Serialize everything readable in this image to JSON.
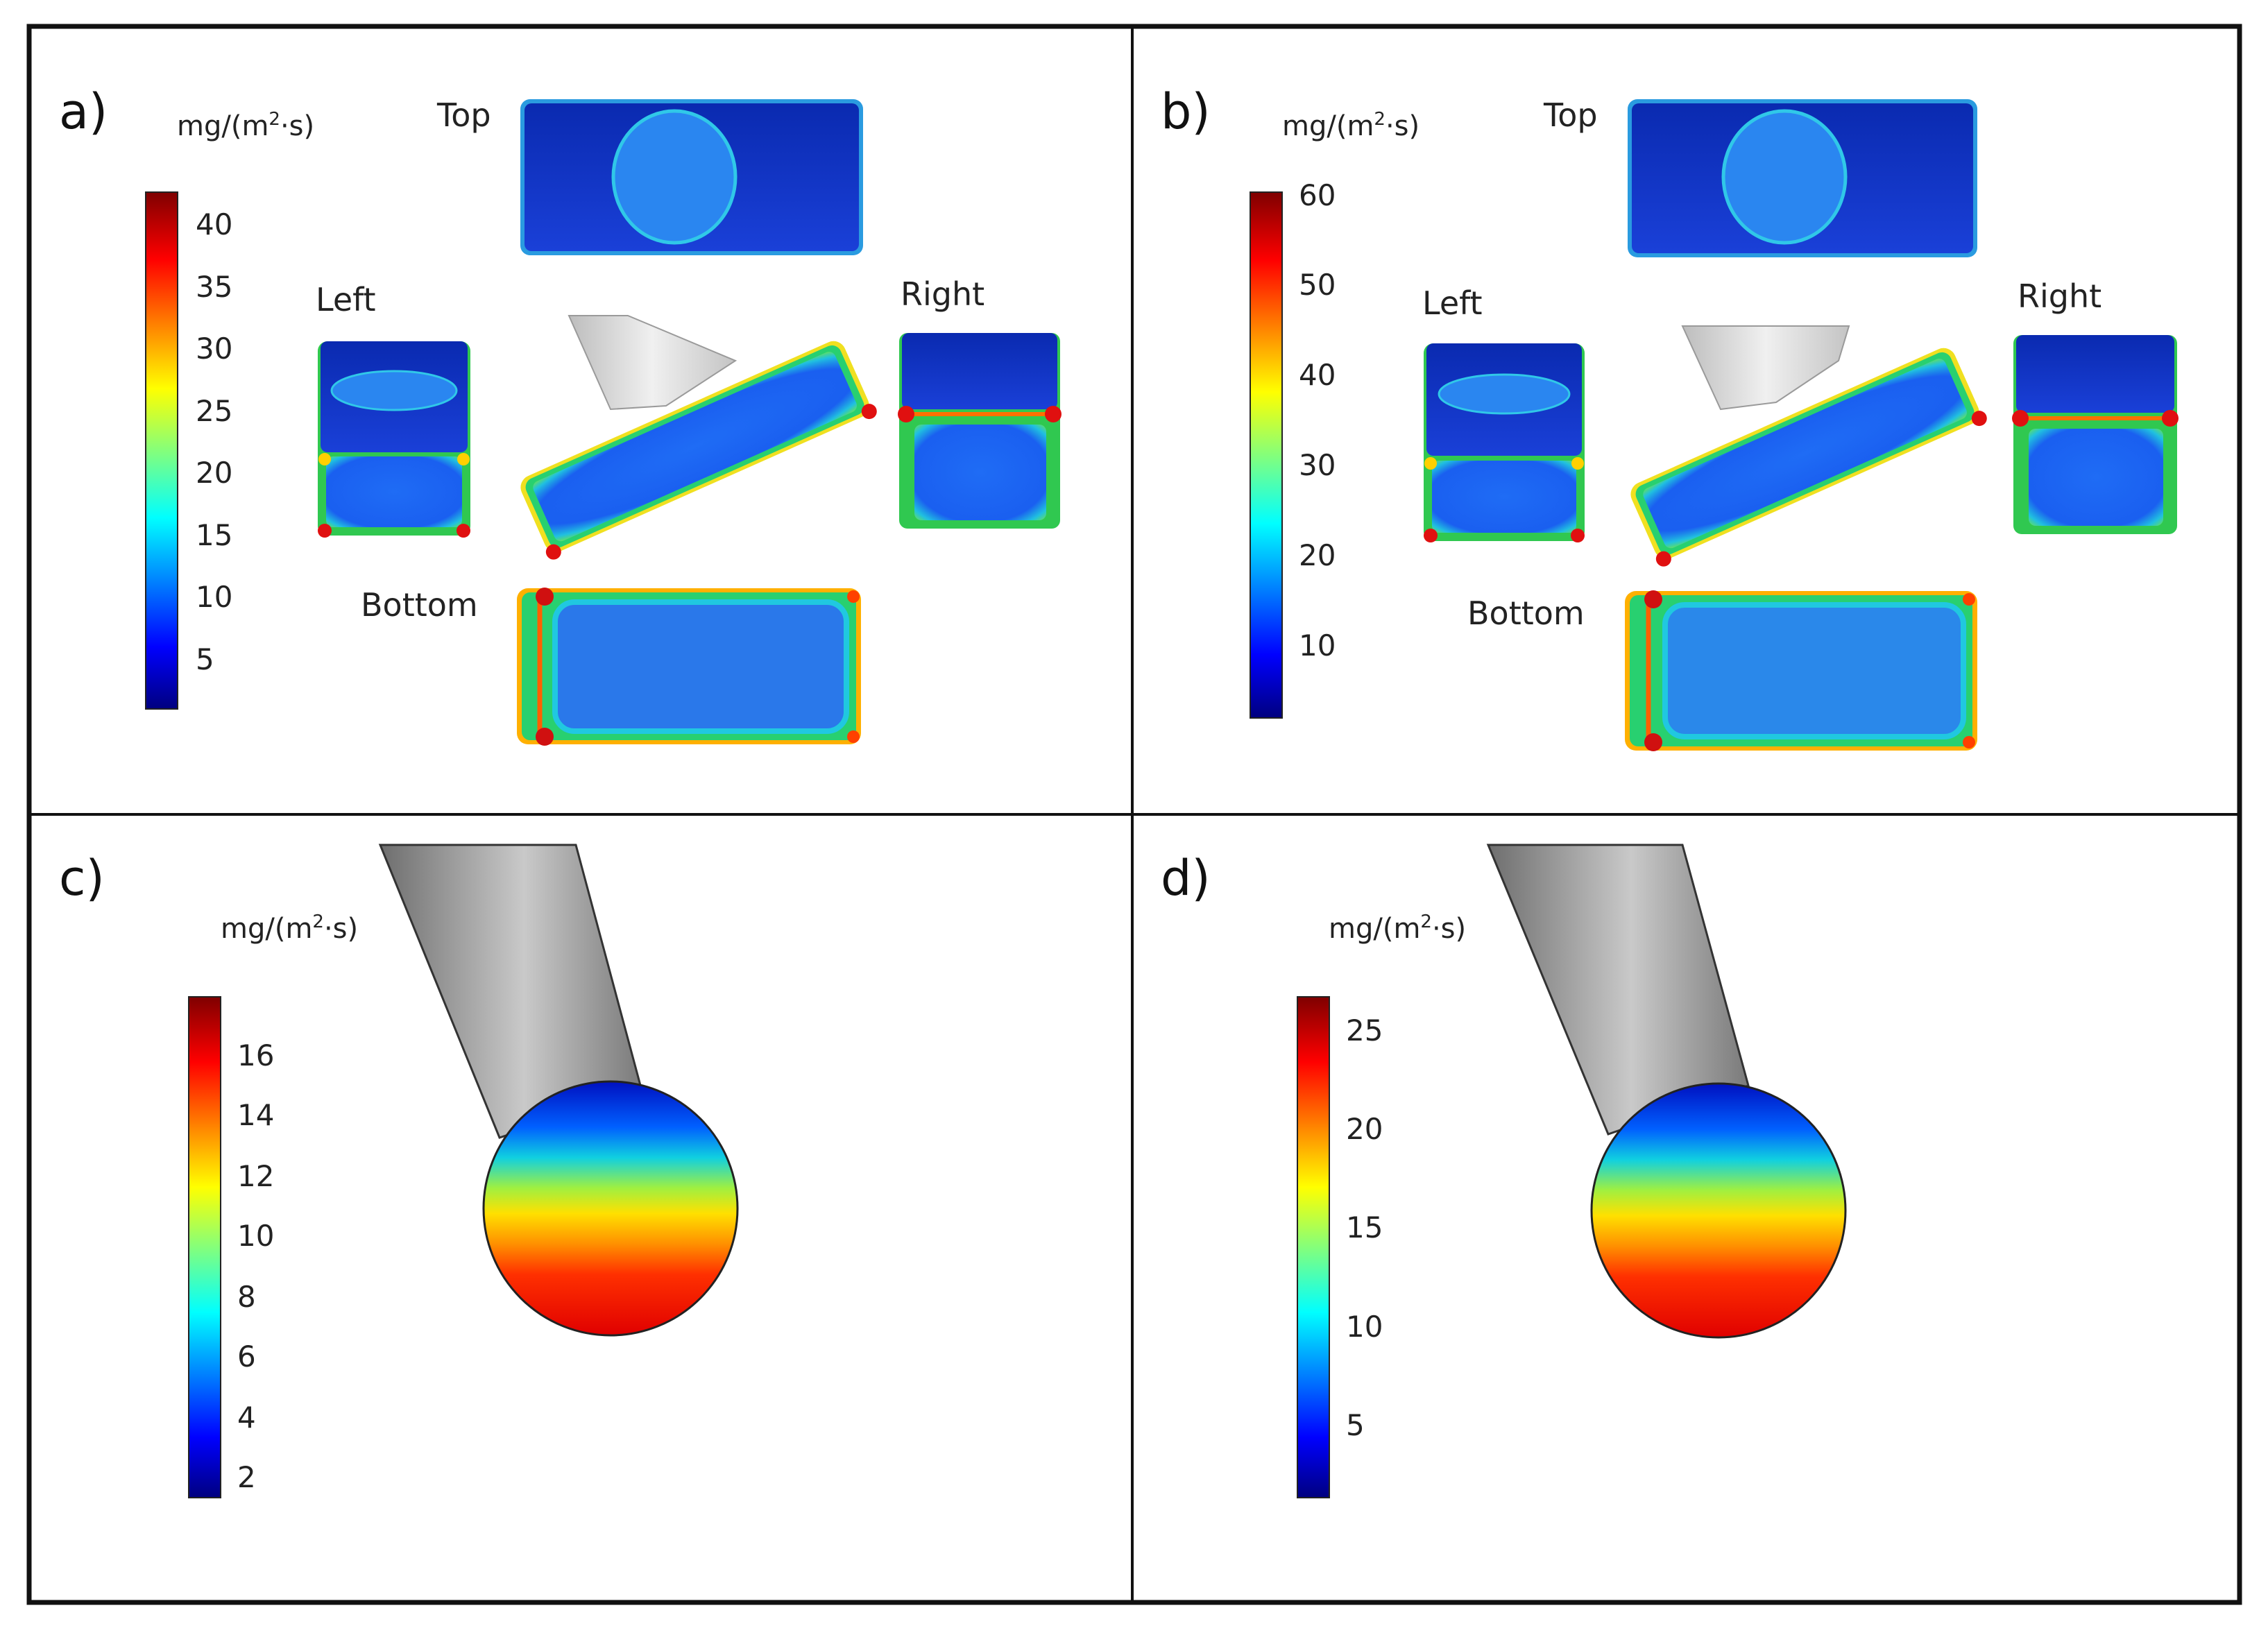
{
  "panels": [
    {
      "letter": "a)",
      "unit_prefix": "mg/(m",
      "unit_sup": "2",
      "unit_suffix": "·s)",
      "colorbar_ticks": [
        "40",
        "35",
        "30",
        "25",
        "20",
        "15",
        "10",
        "5"
      ],
      "views": {
        "top": "Top",
        "left": "Left",
        "right": "Right",
        "bottom": "Bottom"
      }
    },
    {
      "letter": "b)",
      "unit_prefix": "mg/(m",
      "unit_sup": "2",
      "unit_suffix": "·s)",
      "colorbar_ticks": [
        "60",
        "50",
        "40",
        "30",
        "20",
        "10"
      ],
      "views": {
        "top": "Top",
        "left": "Left",
        "right": "Right",
        "bottom": "Bottom"
      }
    },
    {
      "letter": "c)",
      "unit_prefix": "mg/(m",
      "unit_sup": "2",
      "unit_suffix": "·s)",
      "colorbar_ticks": [
        "16",
        "14",
        "12",
        "10",
        "8",
        "6",
        "4",
        "2"
      ]
    },
    {
      "letter": "d)",
      "unit_prefix": "mg/(m",
      "unit_sup": "2",
      "unit_suffix": "·s)",
      "colorbar_ticks": [
        "25",
        "20",
        "15",
        "10",
        "5"
      ]
    }
  ],
  "colors": {
    "jet_low": "#00007f",
    "jet_blue": "#0000ff",
    "jet_cyan": "#00ffff",
    "jet_yellow": "#ffff00",
    "jet_red": "#ff0000",
    "jet_high": "#7f0000",
    "rod_gray": "#9a9a9a",
    "frame": "#111111"
  }
}
